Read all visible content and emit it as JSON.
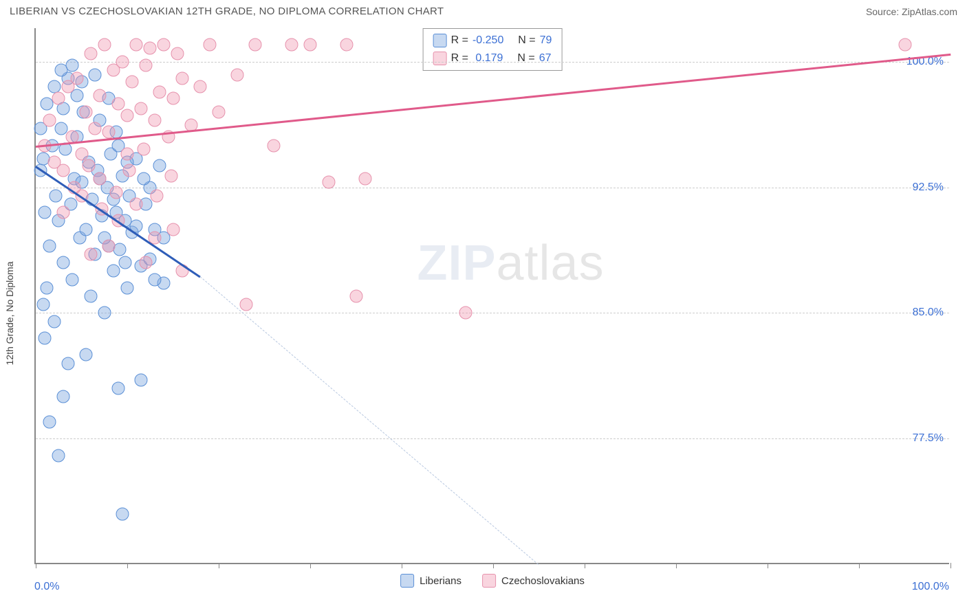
{
  "header": {
    "title": "LIBERIAN VS CZECHOSLOVAKIAN 12TH GRADE, NO DIPLOMA CORRELATION CHART",
    "source_prefix": "Source: ",
    "source_name": "ZipAtlas.com"
  },
  "watermark": {
    "bold": "ZIP",
    "light": "atlas"
  },
  "chart": {
    "type": "scatter",
    "ylabel": "12th Grade, No Diploma",
    "xlim": [
      0,
      100
    ],
    "ylim": [
      70,
      102
    ],
    "xtick_positions": [
      0,
      10,
      20,
      30,
      40,
      50,
      60,
      70,
      80,
      90,
      100
    ],
    "yticks": [
      {
        "value": 77.5,
        "label": "77.5%"
      },
      {
        "value": 85.0,
        "label": "85.0%"
      },
      {
        "value": 92.5,
        "label": "92.5%"
      },
      {
        "value": 100.0,
        "label": "100.0%"
      }
    ],
    "x_axis_min_label": "0.0%",
    "x_axis_max_label": "100.0%",
    "grid_color": "#cccccc",
    "background_color": "#ffffff",
    "series": [
      {
        "name": "Liberians",
        "marker_fill": "rgba(130,170,225,0.45)",
        "marker_stroke": "#5a8fd6",
        "trend_color": "#2e5db8",
        "trend_dash_color": "#b8c8e0",
        "trend": {
          "x1": 0,
          "y1": 93.8,
          "x2": 18,
          "y2": 87.2,
          "x_solid_end": 18,
          "x_dash_end": 55,
          "y_dash_end": 70
        },
        "legend": {
          "R_label": "R =",
          "R": "-0.250",
          "N_label": "N =",
          "N": "79"
        },
        "points": [
          [
            0.5,
            93.5
          ],
          [
            0.8,
            94.2
          ],
          [
            1.0,
            91.0
          ],
          [
            1.2,
            97.5
          ],
          [
            1.5,
            89.0
          ],
          [
            1.8,
            95.0
          ],
          [
            2.0,
            98.5
          ],
          [
            2.2,
            92.0
          ],
          [
            2.5,
            90.5
          ],
          [
            2.8,
            96.0
          ],
          [
            3.0,
            88.0
          ],
          [
            3.2,
            94.8
          ],
          [
            3.5,
            99.0
          ],
          [
            3.8,
            91.5
          ],
          [
            4.0,
            87.0
          ],
          [
            4.2,
            93.0
          ],
          [
            4.5,
            95.5
          ],
          [
            4.8,
            89.5
          ],
          [
            5.0,
            92.8
          ],
          [
            5.2,
            97.0
          ],
          [
            5.5,
            90.0
          ],
          [
            5.8,
            94.0
          ],
          [
            6.0,
            86.0
          ],
          [
            6.2,
            91.8
          ],
          [
            6.5,
            88.5
          ],
          [
            6.8,
            93.5
          ],
          [
            7.0,
            96.5
          ],
          [
            7.2,
            90.8
          ],
          [
            7.5,
            85.0
          ],
          [
            7.8,
            92.5
          ],
          [
            8.0,
            89.0
          ],
          [
            8.2,
            94.5
          ],
          [
            8.5,
            87.5
          ],
          [
            8.8,
            91.0
          ],
          [
            9.0,
            95.0
          ],
          [
            9.2,
            88.8
          ],
          [
            9.5,
            93.2
          ],
          [
            9.8,
            90.5
          ],
          [
            10.0,
            86.5
          ],
          [
            10.2,
            92.0
          ],
          [
            10.5,
            89.8
          ],
          [
            11.0,
            94.2
          ],
          [
            11.5,
            87.8
          ],
          [
            12.0,
            91.5
          ],
          [
            12.5,
            88.2
          ],
          [
            13.0,
            90.0
          ],
          [
            13.5,
            93.8
          ],
          [
            14.0,
            86.8
          ],
          [
            1.0,
            83.5
          ],
          [
            2.0,
            84.5
          ],
          [
            3.5,
            82.0
          ],
          [
            9.0,
            80.5
          ],
          [
            11.5,
            81.0
          ],
          [
            5.0,
            98.8
          ],
          [
            6.5,
            99.2
          ],
          [
            8.0,
            97.8
          ],
          [
            1.5,
            78.5
          ],
          [
            2.5,
            76.5
          ],
          [
            0.8,
            85.5
          ],
          [
            3.0,
            97.2
          ],
          [
            4.5,
            98.0
          ],
          [
            7.0,
            93.0
          ],
          [
            8.5,
            91.8
          ],
          [
            9.8,
            88.0
          ],
          [
            11.0,
            90.2
          ],
          [
            12.5,
            92.5
          ],
          [
            14.0,
            89.5
          ],
          [
            2.8,
            99.5
          ],
          [
            4.0,
            99.8
          ],
          [
            1.2,
            86.5
          ],
          [
            0.5,
            96.0
          ],
          [
            9.5,
            73.0
          ],
          [
            3.0,
            80.0
          ],
          [
            5.5,
            82.5
          ],
          [
            7.5,
            89.5
          ],
          [
            10.0,
            94.0
          ],
          [
            13.0,
            87.0
          ],
          [
            11.8,
            93.0
          ],
          [
            8.8,
            95.8
          ]
        ]
      },
      {
        "name": "Czechoslovakians",
        "marker_fill": "rgba(240,150,175,0.40)",
        "marker_stroke": "#e691ac",
        "trend_color": "#e05a8a",
        "trend": {
          "x1": 0,
          "y1": 95.0,
          "x2": 100,
          "y2": 100.5
        },
        "legend": {
          "R_label": "R =",
          "R": " 0.179",
          "N_label": "N =",
          "N": "67"
        },
        "points": [
          [
            1.0,
            95.0
          ],
          [
            1.5,
            96.5
          ],
          [
            2.0,
            94.0
          ],
          [
            2.5,
            97.8
          ],
          [
            3.0,
            93.5
          ],
          [
            3.5,
            98.5
          ],
          [
            4.0,
            95.5
          ],
          [
            4.5,
            99.0
          ],
          [
            5.0,
            94.5
          ],
          [
            5.5,
            97.0
          ],
          [
            6.0,
            100.5
          ],
          [
            6.5,
            96.0
          ],
          [
            7.0,
            98.0
          ],
          [
            7.5,
            101.0
          ],
          [
            8.0,
            95.8
          ],
          [
            8.5,
            99.5
          ],
          [
            9.0,
            97.5
          ],
          [
            9.5,
            100.0
          ],
          [
            10.0,
            96.8
          ],
          [
            10.5,
            98.8
          ],
          [
            11.0,
            101.0
          ],
          [
            11.5,
            97.2
          ],
          [
            12.0,
            99.8
          ],
          [
            12.5,
            100.8
          ],
          [
            13.0,
            96.5
          ],
          [
            13.5,
            98.2
          ],
          [
            14.0,
            101.0
          ],
          [
            14.5,
            95.5
          ],
          [
            15.0,
            97.8
          ],
          [
            15.5,
            100.5
          ],
          [
            16.0,
            99.0
          ],
          [
            17.0,
            96.2
          ],
          [
            18.0,
            98.5
          ],
          [
            19.0,
            101.0
          ],
          [
            20.0,
            97.0
          ],
          [
            22.0,
            99.2
          ],
          [
            24.0,
            101.0
          ],
          [
            26.0,
            95.0
          ],
          [
            28.0,
            101.0
          ],
          [
            30.0,
            101.0
          ],
          [
            32.0,
            92.8
          ],
          [
            34.0,
            101.0
          ],
          [
            3.0,
            91.0
          ],
          [
            5.0,
            92.0
          ],
          [
            7.0,
            93.0
          ],
          [
            9.0,
            90.5
          ],
          [
            11.0,
            91.5
          ],
          [
            13.0,
            89.5
          ],
          [
            15.0,
            90.0
          ],
          [
            6.0,
            88.5
          ],
          [
            8.0,
            89.0
          ],
          [
            10.0,
            94.5
          ],
          [
            12.0,
            88.0
          ],
          [
            36.0,
            93.0
          ],
          [
            16.0,
            87.5
          ],
          [
            23.0,
            85.5
          ],
          [
            35.0,
            86.0
          ],
          [
            47.0,
            85.0
          ],
          [
            95.0,
            101.0
          ],
          [
            4.2,
            92.5
          ],
          [
            5.8,
            93.8
          ],
          [
            7.2,
            91.2
          ],
          [
            8.8,
            92.2
          ],
          [
            10.2,
            93.5
          ],
          [
            11.8,
            94.8
          ],
          [
            13.2,
            92.0
          ],
          [
            14.8,
            93.2
          ]
        ]
      }
    ]
  }
}
